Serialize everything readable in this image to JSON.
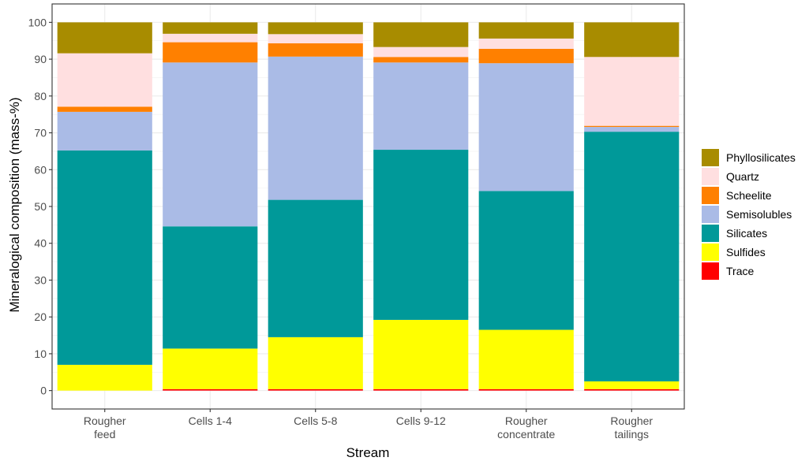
{
  "chart_data": {
    "type": "bar",
    "stacked": true,
    "title": "",
    "xlabel": "Stream",
    "ylabel": "Mineralogical composition (mass-%)",
    "ylim": [
      -5,
      105
    ],
    "yticks": [
      0,
      10,
      20,
      30,
      40,
      50,
      60,
      70,
      80,
      90,
      100
    ],
    "grid": true,
    "legend_position": "right",
    "categories": [
      [
        "Rougher",
        "feed"
      ],
      [
        "Cells 1-4"
      ],
      [
        "Cells 5-8"
      ],
      [
        "Cells 9-12"
      ],
      [
        "Rougher",
        "concentrate"
      ],
      [
        "Rougher",
        "tailings"
      ]
    ],
    "series": [
      {
        "name": "Trace",
        "color": "#FF0000",
        "values": [
          0.0,
          0.4,
          0.4,
          0.4,
          0.4,
          0.4
        ]
      },
      {
        "name": "Sulfides",
        "color": "#FFFF00",
        "values": [
          7.0,
          11.0,
          14.1,
          18.8,
          16.1,
          2.1
        ]
      },
      {
        "name": "Silicates",
        "color": "#009999",
        "values": [
          58.2,
          33.2,
          37.3,
          46.2,
          37.7,
          67.8
        ]
      },
      {
        "name": "Semisolubles",
        "color": "#AABBE6",
        "values": [
          10.5,
          44.5,
          38.9,
          23.7,
          34.7,
          1.3
        ]
      },
      {
        "name": "Scheelite",
        "color": "#FF8000",
        "values": [
          1.4,
          5.5,
          3.6,
          1.5,
          3.9,
          0.3
        ]
      },
      {
        "name": "Quartz",
        "color": "#FFDFE0",
        "values": [
          14.5,
          2.3,
          2.5,
          2.7,
          2.8,
          18.7
        ]
      },
      {
        "name": "Phyllosilicates",
        "color": "#A88C00",
        "values": [
          8.4,
          3.1,
          3.2,
          6.7,
          4.4,
          9.4
        ]
      }
    ],
    "legend_order": [
      "Phyllosilicates",
      "Quartz",
      "Scheelite",
      "Semisolubles",
      "Silicates",
      "Sulfides",
      "Trace"
    ]
  }
}
